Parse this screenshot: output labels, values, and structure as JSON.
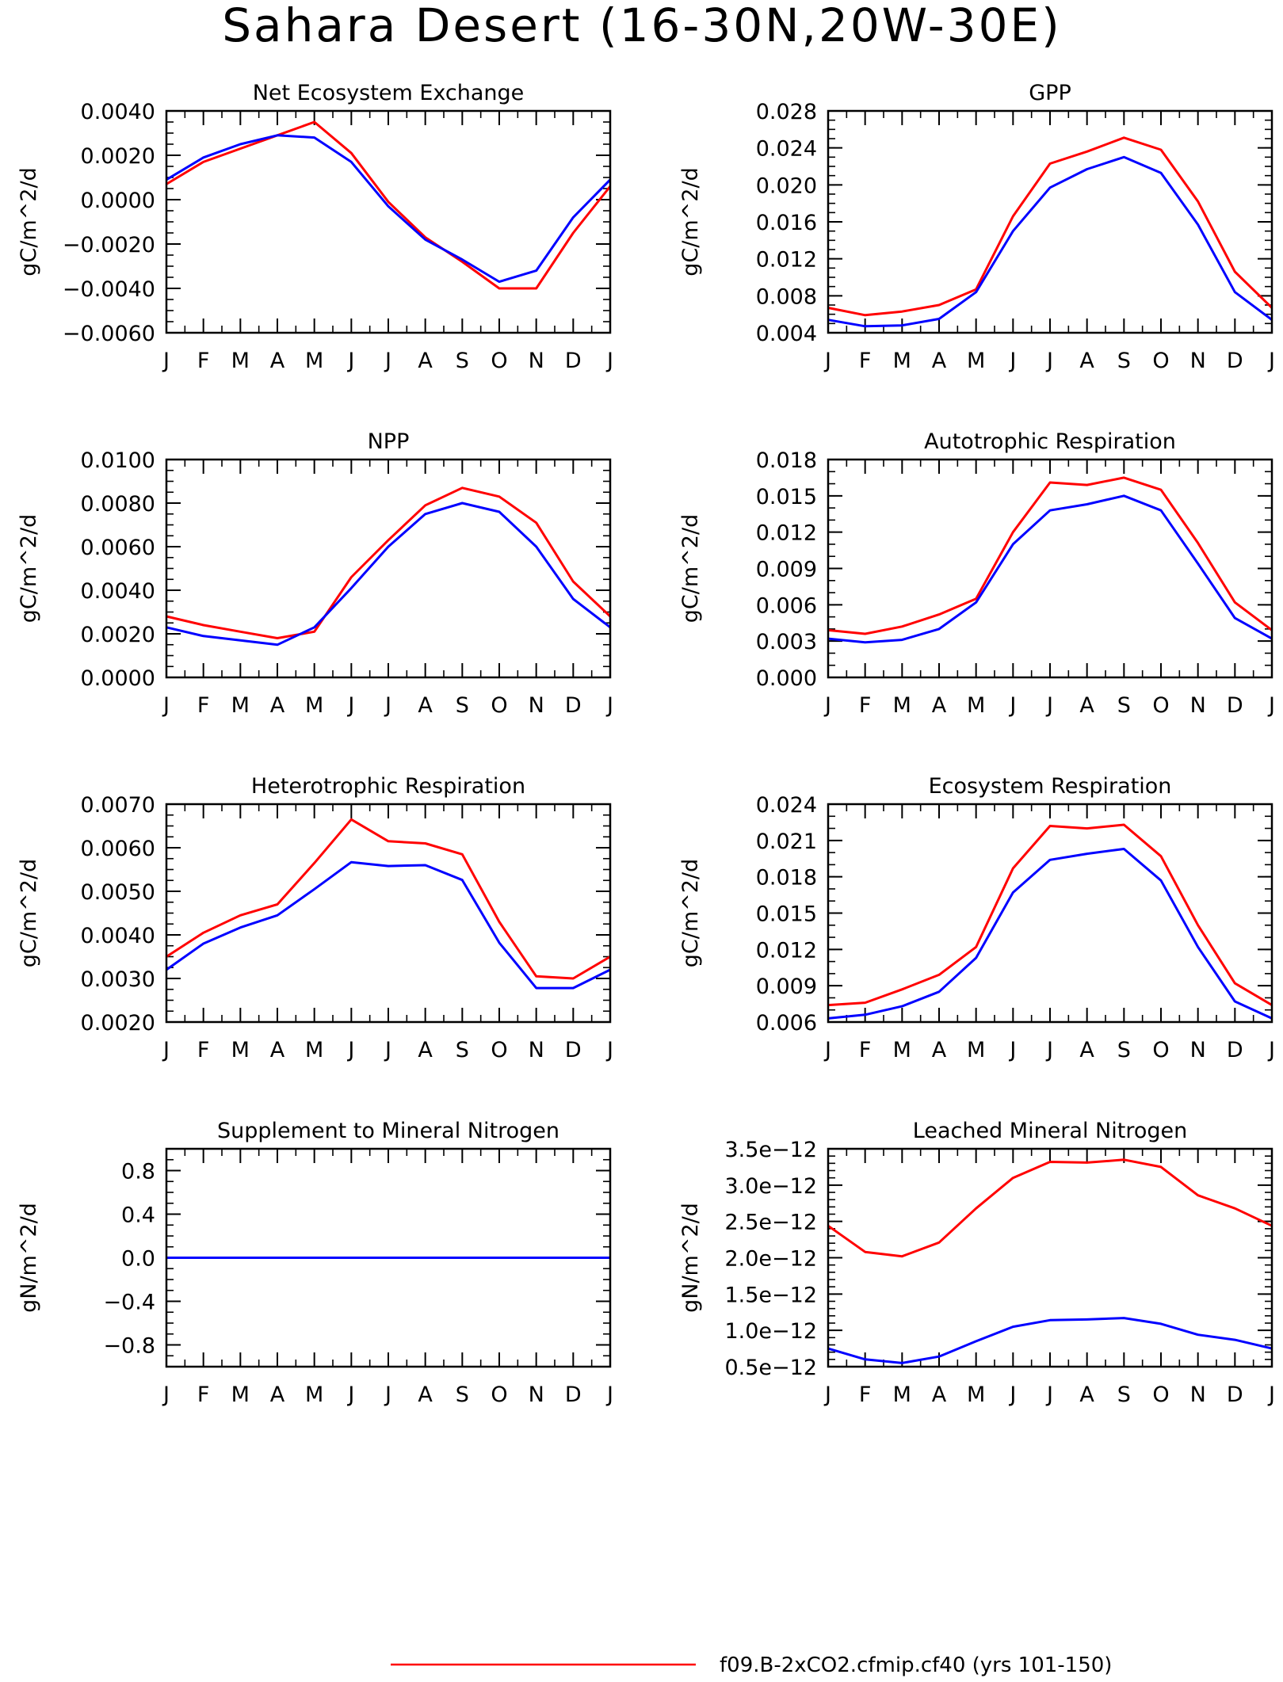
{
  "page_title": "Sahara Desert (16-30N,20W-30E)",
  "months": [
    "J",
    "F",
    "M",
    "A",
    "M",
    "J",
    "J",
    "A",
    "S",
    "O",
    "N",
    "D",
    "J"
  ],
  "colors": {
    "case": "#ff0000",
    "control": "#0000ff",
    "axis": "#000000"
  },
  "legend": {
    "case_label": "f09.B-2xCO2.cfmip.cf40 (yrs 101-150)"
  },
  "chart_data": [
    {
      "type": "line",
      "title": "Net Ecosystem Exchange",
      "ylabel": "gC/m^2/d",
      "categories": [
        "J",
        "F",
        "M",
        "A",
        "M",
        "J",
        "J",
        "A",
        "S",
        "O",
        "N",
        "D",
        "J"
      ],
      "ylim": [
        -0.006,
        0.004
      ],
      "yticks": [
        0.004,
        0.002,
        0.0,
        -0.002,
        -0.004,
        -0.006
      ],
      "yticklabels": [
        "0.0040",
        "0.0020",
        "0.0000",
        "−0.0020",
        "−0.0040",
        "−0.0060"
      ],
      "yminor": 0.0005,
      "series": [
        {
          "color": "#ff0000",
          "values": [
            0.0007,
            0.0017,
            0.0023,
            0.0029,
            0.0035,
            0.0021,
            -0.0001,
            -0.0017,
            -0.0028,
            -0.004,
            -0.004,
            -0.0015,
            0.0006
          ]
        },
        {
          "color": "#0000ff",
          "values": [
            0.0009,
            0.0019,
            0.0025,
            0.0029,
            0.0028,
            0.0017,
            -0.0003,
            -0.0018,
            -0.0027,
            -0.0037,
            -0.0032,
            -0.0008,
            0.0009
          ]
        }
      ]
    },
    {
      "type": "line",
      "title": "GPP",
      "ylabel": "gC/m^2/d",
      "categories": [
        "J",
        "F",
        "M",
        "A",
        "M",
        "J",
        "J",
        "A",
        "S",
        "O",
        "N",
        "D",
        "J"
      ],
      "ylim": [
        0.004,
        0.028
      ],
      "yticks": [
        0.028,
        0.024,
        0.02,
        0.016,
        0.012,
        0.008,
        0.004
      ],
      "yticklabels": [
        "0.028",
        "0.024",
        "0.020",
        "0.016",
        "0.012",
        "0.008",
        "0.004"
      ],
      "yminor": 0.001,
      "series": [
        {
          "color": "#ff0000",
          "values": [
            0.0067,
            0.0059,
            0.0063,
            0.007,
            0.0087,
            0.0166,
            0.0223,
            0.0236,
            0.0251,
            0.0238,
            0.0182,
            0.0106,
            0.0067
          ]
        },
        {
          "color": "#0000ff",
          "values": [
            0.0054,
            0.0047,
            0.0048,
            0.0055,
            0.0084,
            0.015,
            0.0197,
            0.0217,
            0.023,
            0.0213,
            0.0157,
            0.0084,
            0.0054
          ]
        }
      ]
    },
    {
      "type": "line",
      "title": "NPP",
      "ylabel": "gC/m^2/d",
      "categories": [
        "J",
        "F",
        "M",
        "A",
        "M",
        "J",
        "J",
        "A",
        "S",
        "O",
        "N",
        "D",
        "J"
      ],
      "ylim": [
        0.0,
        0.01
      ],
      "yticks": [
        0.01,
        0.008,
        0.006,
        0.004,
        0.002,
        0.0
      ],
      "yticklabels": [
        "0.0100",
        "0.0080",
        "0.0060",
        "0.0040",
        "0.0020",
        "0.0000"
      ],
      "yminor": 0.0005,
      "series": [
        {
          "color": "#ff0000",
          "values": [
            0.0028,
            0.0024,
            0.0021,
            0.0018,
            0.0021,
            0.0046,
            0.0063,
            0.0079,
            0.0087,
            0.0083,
            0.0071,
            0.0044,
            0.0028
          ]
        },
        {
          "color": "#0000ff",
          "values": [
            0.0023,
            0.0019,
            0.0017,
            0.0015,
            0.0023,
            0.0041,
            0.006,
            0.0075,
            0.008,
            0.0076,
            0.006,
            0.0036,
            0.0023
          ]
        }
      ]
    },
    {
      "type": "line",
      "title": "Autotrophic Respiration",
      "ylabel": "gC/m^2/d",
      "categories": [
        "J",
        "F",
        "M",
        "A",
        "M",
        "J",
        "J",
        "A",
        "S",
        "O",
        "N",
        "D",
        "J"
      ],
      "ylim": [
        0.0,
        0.018
      ],
      "yticks": [
        0.018,
        0.015,
        0.012,
        0.009,
        0.006,
        0.003,
        0.0
      ],
      "yticklabels": [
        "0.018",
        "0.015",
        "0.012",
        "0.009",
        "0.006",
        "0.003",
        "0.000"
      ],
      "yminor": 0.001,
      "series": [
        {
          "color": "#ff0000",
          "values": [
            0.0039,
            0.0036,
            0.0042,
            0.0052,
            0.0065,
            0.012,
            0.0161,
            0.0159,
            0.0165,
            0.0155,
            0.0111,
            0.0062,
            0.0039
          ]
        },
        {
          "color": "#0000ff",
          "values": [
            0.0032,
            0.0029,
            0.0031,
            0.004,
            0.0062,
            0.011,
            0.0138,
            0.0143,
            0.015,
            0.0138,
            0.0094,
            0.0049,
            0.0032
          ]
        }
      ]
    },
    {
      "type": "line",
      "title": "Heterotrophic Respiration",
      "ylabel": "gC/m^2/d",
      "categories": [
        "J",
        "F",
        "M",
        "A",
        "M",
        "J",
        "J",
        "A",
        "S",
        "O",
        "N",
        "D",
        "J"
      ],
      "ylim": [
        0.002,
        0.007
      ],
      "yticks": [
        0.007,
        0.006,
        0.005,
        0.004,
        0.003,
        0.002
      ],
      "yticklabels": [
        "0.0070",
        "0.0060",
        "0.0050",
        "0.0040",
        "0.0030",
        "0.0020"
      ],
      "yminor": 0.00025,
      "series": [
        {
          "color": "#ff0000",
          "values": [
            0.0035,
            0.00405,
            0.00445,
            0.0047,
            0.00565,
            0.00665,
            0.00615,
            0.0061,
            0.00585,
            0.0043,
            0.00305,
            0.003,
            0.0035
          ]
        },
        {
          "color": "#0000ff",
          "values": [
            0.0032,
            0.0038,
            0.00417,
            0.00445,
            0.00505,
            0.00567,
            0.00558,
            0.0056,
            0.00526,
            0.00382,
            0.00278,
            0.00278,
            0.0032
          ]
        }
      ]
    },
    {
      "type": "line",
      "title": "Ecosystem Respiration",
      "ylabel": "gC/m^2/d",
      "categories": [
        "J",
        "F",
        "M",
        "A",
        "M",
        "J",
        "J",
        "A",
        "S",
        "O",
        "N",
        "D",
        "J"
      ],
      "ylim": [
        0.006,
        0.024
      ],
      "yticks": [
        0.024,
        0.021,
        0.018,
        0.015,
        0.012,
        0.009,
        0.006
      ],
      "yticklabels": [
        "0.024",
        "0.021",
        "0.018",
        "0.015",
        "0.012",
        "0.009",
        "0.006"
      ],
      "yminor": 0.001,
      "series": [
        {
          "color": "#ff0000",
          "values": [
            0.0074,
            0.0076,
            0.0087,
            0.0099,
            0.0122,
            0.0187,
            0.0222,
            0.022,
            0.0223,
            0.0197,
            0.014,
            0.0092,
            0.0074
          ]
        },
        {
          "color": "#0000ff",
          "values": [
            0.0063,
            0.0066,
            0.0073,
            0.0085,
            0.0113,
            0.0167,
            0.0194,
            0.0199,
            0.0203,
            0.0177,
            0.0122,
            0.0077,
            0.0063
          ]
        }
      ]
    },
    {
      "type": "line",
      "title": "Supplement to Mineral Nitrogen",
      "ylabel": "gN/m^2/d",
      "categories": [
        "J",
        "F",
        "M",
        "A",
        "M",
        "J",
        "J",
        "A",
        "S",
        "O",
        "N",
        "D",
        "J"
      ],
      "ylim": [
        -1.0,
        1.0
      ],
      "yticks": [
        0.8,
        0.4,
        0.0,
        -0.4,
        -0.8
      ],
      "yticklabels": [
        "0.8",
        "0.4",
        "0.0",
        "−0.4",
        "−0.8"
      ],
      "yminor": 0.1,
      "series": [
        {
          "color": "#ff0000",
          "values": [
            0,
            0,
            0,
            0,
            0,
            0,
            0,
            0,
            0,
            0,
            0,
            0,
            0
          ]
        },
        {
          "color": "#0000ff",
          "values": [
            0,
            0,
            0,
            0,
            0,
            0,
            0,
            0,
            0,
            0,
            0,
            0,
            0
          ]
        }
      ]
    },
    {
      "type": "line",
      "title": "Leached Mineral Nitrogen",
      "ylabel": "gN/m^2/d",
      "categories": [
        "J",
        "F",
        "M",
        "A",
        "M",
        "J",
        "J",
        "A",
        "S",
        "O",
        "N",
        "D",
        "J"
      ],
      "ylim": [
        5e-13,
        3.5e-12
      ],
      "yticks": [
        3.5e-12,
        3e-12,
        2.5e-12,
        2e-12,
        1.5e-12,
        1e-12,
        5e-13
      ],
      "yticklabels": [
        "3.5e−12",
        "3.0e−12",
        "2.5e−12",
        "2.0e−12",
        "1.5e−12",
        "1.0e−12",
        "0.5e−12"
      ],
      "yminor": 1e-13,
      "series": [
        {
          "color": "#ff0000",
          "values": [
            2.44e-12,
            2.08e-12,
            2.02e-12,
            2.21e-12,
            2.68e-12,
            3.1e-12,
            3.32e-12,
            3.31e-12,
            3.35e-12,
            3.25e-12,
            2.86e-12,
            2.68e-12,
            2.44e-12
          ]
        },
        {
          "color": "#0000ff",
          "values": [
            7.5e-13,
            6e-13,
            5.5e-13,
            6.4e-13,
            8.5e-13,
            1.05e-12,
            1.14e-12,
            1.15e-12,
            1.17e-12,
            1.09e-12,
            9.4e-13,
            8.7e-13,
            7.5e-13
          ]
        }
      ]
    }
  ]
}
